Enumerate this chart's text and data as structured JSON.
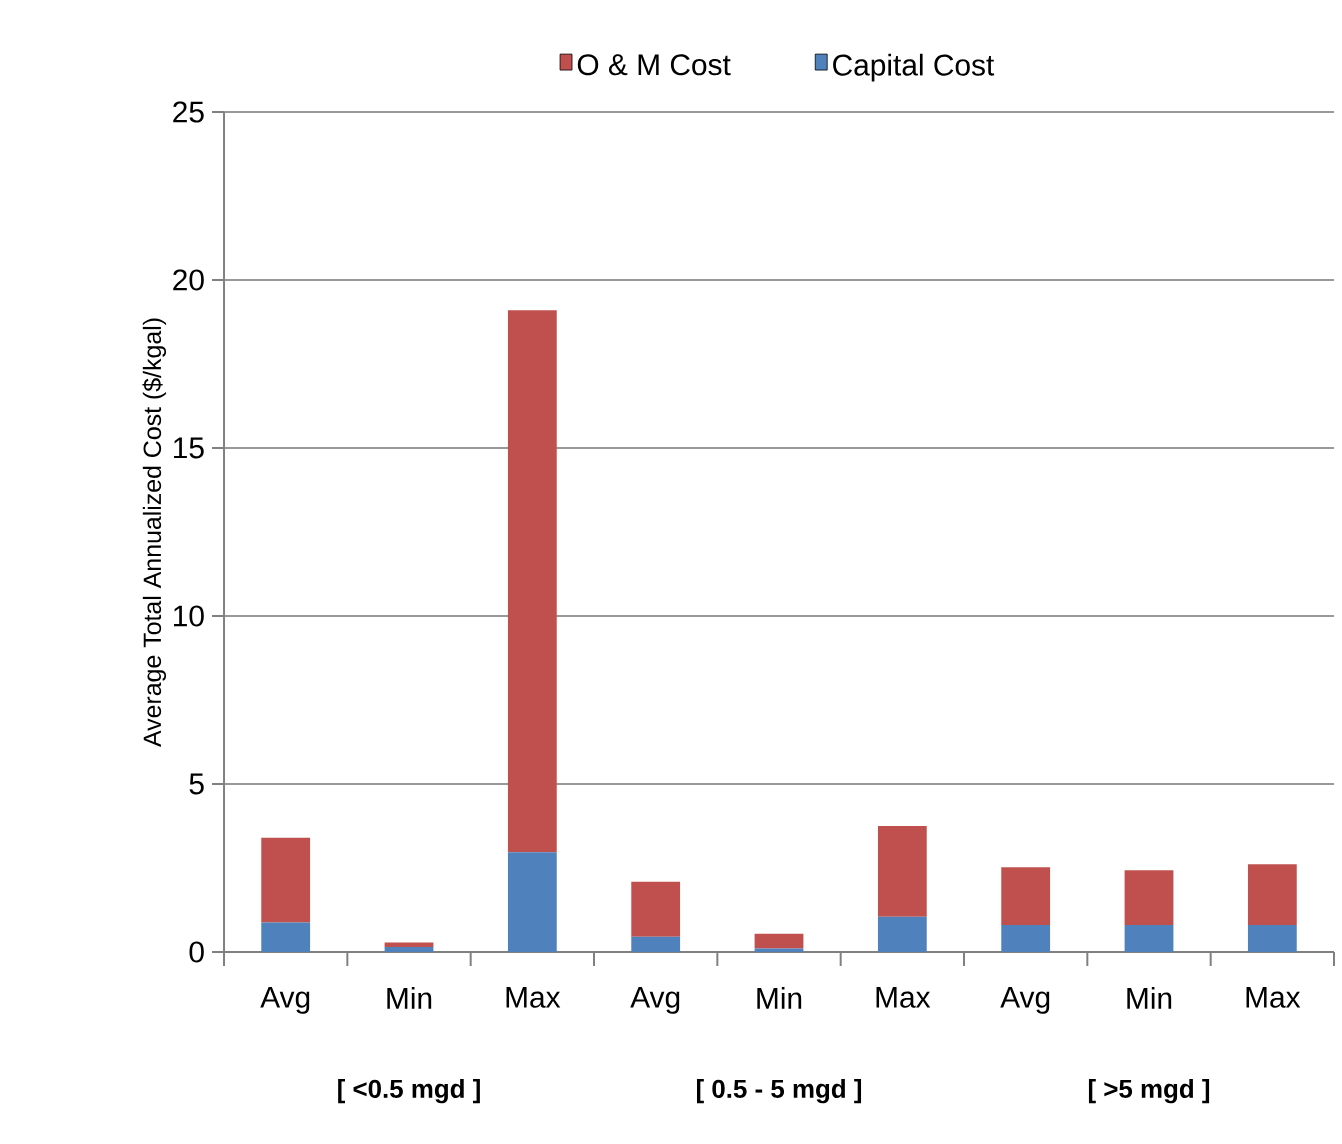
{
  "chart_data": {
    "type": "bar",
    "stacked": true,
    "ylabel": "Average Total Annualized Cost ($/kgal)",
    "categories": [
      "Avg",
      "Min",
      "Max",
      "Avg",
      "Min",
      "Max",
      "Avg",
      "Min",
      "Max"
    ],
    "series": [
      {
        "name": "Capital Cost",
        "color": "#4f81bd",
        "values": [
          0.88,
          0.15,
          2.97,
          0.45,
          0.1,
          1.05,
          0.8,
          0.8,
          0.8
        ]
      },
      {
        "name": "O & M Cost",
        "color": "#c0504d",
        "values": [
          2.52,
          0.13,
          16.13,
          1.64,
          0.44,
          2.7,
          1.72,
          1.63,
          1.81
        ]
      }
    ],
    "ylim": [
      0,
      25
    ],
    "yticks": [
      0,
      5,
      10,
      15,
      20,
      25
    ],
    "grid": "y",
    "legend": "top",
    "annotations": [
      "[ <0.5 mgd ]",
      "[ 0.5 - 5 mgd ]",
      "[ >5 mgd ]"
    ]
  }
}
